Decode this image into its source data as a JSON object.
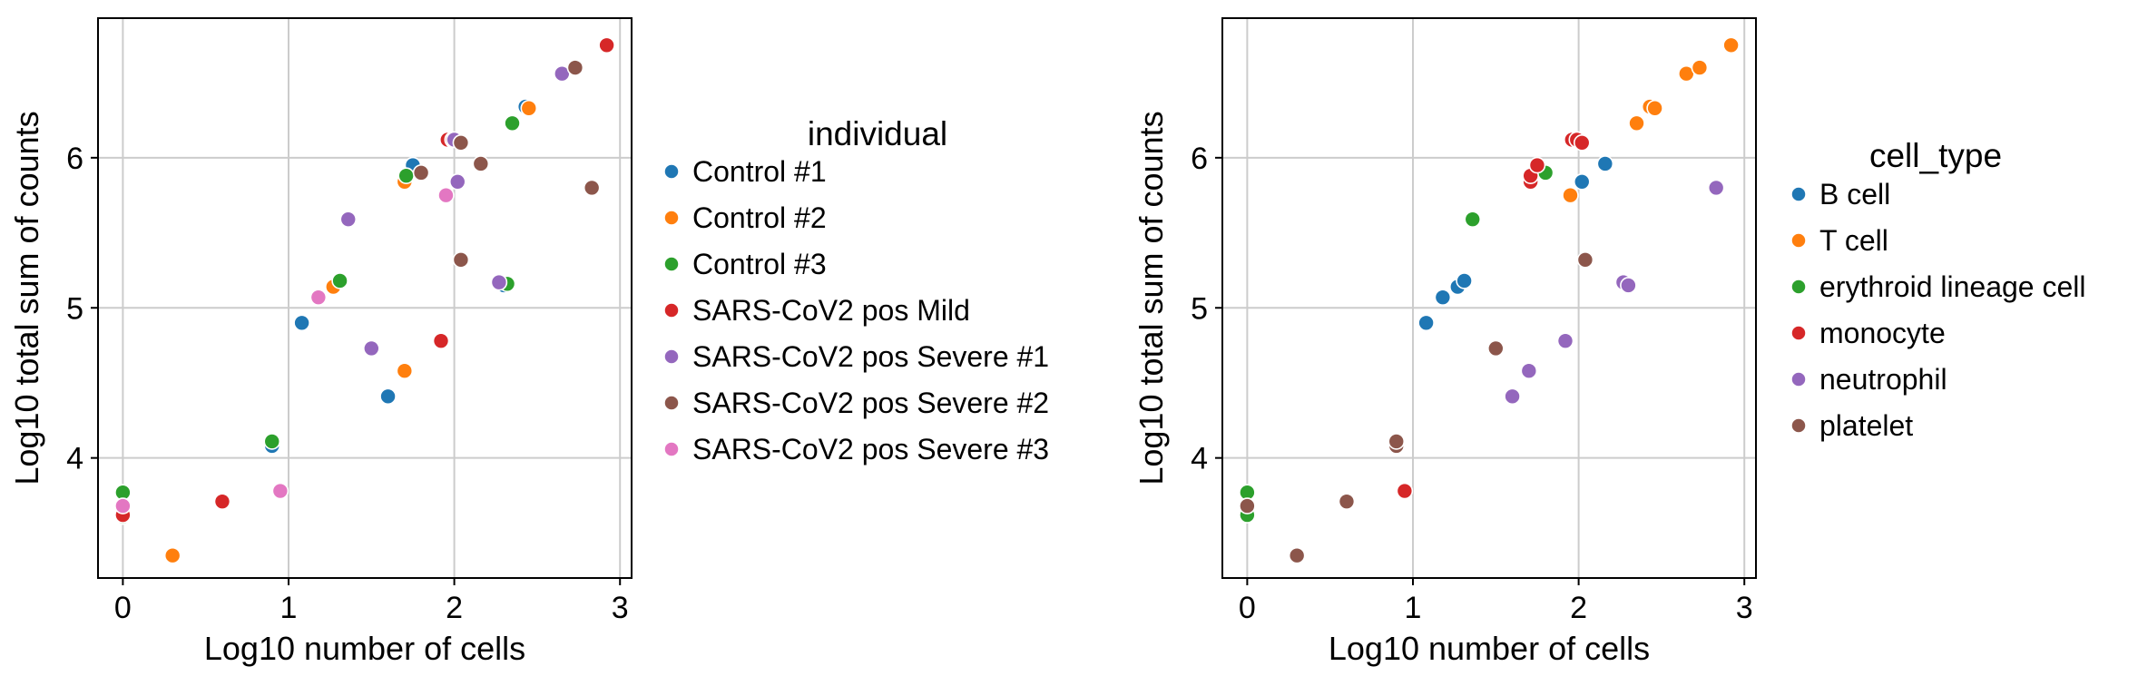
{
  "chart_data": [
    {
      "type": "scatter",
      "xlabel": "Log10 number of cells",
      "ylabel": "Log10 total sum of counts",
      "xlim": [
        -0.15,
        3.07
      ],
      "ylim": [
        3.2,
        6.93
      ],
      "xticks": [
        0,
        1,
        2,
        3
      ],
      "yticks": [
        4,
        5,
        6
      ],
      "grid": true,
      "legend": {
        "title": "individual",
        "placement": "outside-right",
        "entries": [
          "Control #1",
          "Control #2",
          "Control #3",
          "SARS-CoV2 pos Mild",
          "SARS-CoV2 pos Severe #1",
          "SARS-CoV2 pos Severe #2",
          "SARS-CoV2 pos Severe #3"
        ]
      },
      "series": [
        {
          "name": "Control #1",
          "color": "#1f77b4",
          "points": [
            [
              0.9,
              4.08
            ],
            [
              1.08,
              4.9
            ],
            [
              1.6,
              4.41
            ],
            [
              1.75,
              5.95
            ],
            [
              2.3,
              5.15
            ],
            [
              2.43,
              6.34
            ]
          ]
        },
        {
          "name": "Control #2",
          "color": "#ff7f0e",
          "points": [
            [
              0.3,
              3.35
            ],
            [
              1.27,
              5.14
            ],
            [
              1.7,
              4.58
            ],
            [
              1.7,
              5.84
            ],
            [
              2.45,
              6.33
            ],
            [
              1.97,
              6.12
            ]
          ]
        },
        {
          "name": "Control #3",
          "color": "#2ca02c",
          "points": [
            [
              0.0,
              3.77
            ],
            [
              0.0,
              3.61
            ],
            [
              0.9,
              4.11
            ],
            [
              1.31,
              5.18
            ],
            [
              1.71,
              5.88
            ],
            [
              2.32,
              5.16
            ],
            [
              2.35,
              6.23
            ]
          ]
        },
        {
          "name": "SARS-CoV2 pos Mild",
          "color": "#d62728",
          "points": [
            [
              0.0,
              3.62
            ],
            [
              0.6,
              3.71
            ],
            [
              1.92,
              4.78
            ],
            [
              1.96,
              6.12
            ],
            [
              1.99,
              6.12
            ],
            [
              2.92,
              6.75
            ]
          ]
        },
        {
          "name": "SARS-CoV2 pos Severe #1",
          "color": "#9467bd",
          "points": [
            [
              1.36,
              5.59
            ],
            [
              1.5,
              4.73
            ],
            [
              2.02,
              5.84
            ],
            [
              2.27,
              5.17
            ],
            [
              2.0,
              6.12
            ],
            [
              2.65,
              6.56
            ]
          ]
        },
        {
          "name": "SARS-CoV2 pos Severe #2",
          "color": "#8c564b",
          "points": [
            [
              1.8,
              5.9
            ],
            [
              2.04,
              5.32
            ],
            [
              2.04,
              6.1
            ],
            [
              2.16,
              5.96
            ],
            [
              2.73,
              6.6
            ],
            [
              2.83,
              5.8
            ]
          ]
        },
        {
          "name": "SARS-CoV2 pos Severe #3",
          "color": "#e377c2",
          "points": [
            [
              0.0,
              3.68
            ],
            [
              0.95,
              3.78
            ],
            [
              1.18,
              5.07
            ],
            [
              1.95,
              5.75
            ]
          ]
        }
      ]
    },
    {
      "type": "scatter",
      "xlabel": "Log10 number of cells",
      "ylabel": "Log10 total sum of counts",
      "xlim": [
        -0.15,
        3.07
      ],
      "ylim": [
        3.2,
        6.93
      ],
      "xticks": [
        0,
        1,
        2,
        3
      ],
      "yticks": [
        4,
        5,
        6
      ],
      "grid": true,
      "legend": {
        "title": "cell_type",
        "placement": "outside-right",
        "entries": [
          "B cell",
          "T cell",
          "erythroid lineage cell",
          "monocyte",
          "neutrophil",
          "platelet"
        ]
      },
      "series": [
        {
          "name": "B cell",
          "color": "#1f77b4",
          "points": [
            [
              1.08,
              4.9
            ],
            [
              1.18,
              5.07
            ],
            [
              1.27,
              5.14
            ],
            [
              1.31,
              5.18
            ],
            [
              2.02,
              5.84
            ],
            [
              2.16,
              5.96
            ]
          ]
        },
        {
          "name": "T cell",
          "color": "#ff7f0e",
          "points": [
            [
              1.95,
              5.75
            ],
            [
              2.35,
              6.23
            ],
            [
              2.43,
              6.34
            ],
            [
              2.46,
              6.33
            ],
            [
              2.65,
              6.56
            ],
            [
              2.73,
              6.6
            ],
            [
              2.92,
              6.75
            ]
          ]
        },
        {
          "name": "erythroid lineage cell",
          "color": "#2ca02c",
          "points": [
            [
              0.0,
              3.77
            ],
            [
              0.0,
              3.62
            ],
            [
              1.36,
              5.59
            ],
            [
              1.8,
              5.9
            ]
          ]
        },
        {
          "name": "monocyte",
          "color": "#d62728",
          "points": [
            [
              0.95,
              3.78
            ],
            [
              1.71,
              5.84
            ],
            [
              1.71,
              5.88
            ],
            [
              1.75,
              5.95
            ],
            [
              1.96,
              6.12
            ],
            [
              1.99,
              6.12
            ],
            [
              2.02,
              6.1
            ]
          ]
        },
        {
          "name": "neutrophil",
          "color": "#9467bd",
          "points": [
            [
              1.6,
              4.41
            ],
            [
              1.7,
              4.58
            ],
            [
              1.92,
              4.78
            ],
            [
              2.27,
              5.17
            ],
            [
              2.3,
              5.15
            ],
            [
              2.83,
              5.8
            ]
          ]
        },
        {
          "name": "platelet",
          "color": "#8c564b",
          "points": [
            [
              0.0,
              3.68
            ],
            [
              0.3,
              3.35
            ],
            [
              0.6,
              3.71
            ],
            [
              0.9,
              4.08
            ],
            [
              0.9,
              4.11
            ],
            [
              1.5,
              4.73
            ],
            [
              2.04,
              5.32
            ]
          ]
        }
      ]
    }
  ]
}
